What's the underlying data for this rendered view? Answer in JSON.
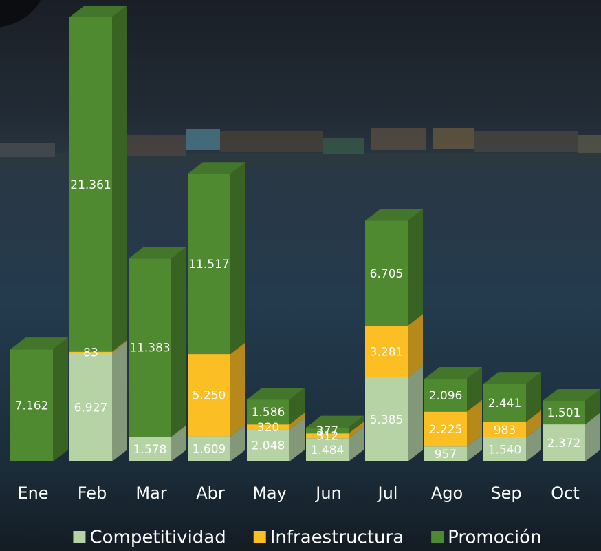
{
  "chart_data": {
    "type": "bar3d_stacked",
    "categories": [
      "Ene",
      "Feb",
      "Mar",
      "Abr",
      "May",
      "Jun",
      "Jul",
      "Ago",
      "Sep",
      "Oct"
    ],
    "series": [
      {
        "name": "Competitividad",
        "color": "#b6d3a6",
        "values": [
          null,
          6927,
          1578,
          1609,
          2048,
          1484,
          5385,
          957,
          1540,
          2372
        ],
        "value_labels": [
          null,
          "6.927",
          "1.578",
          "1.609",
          "2.048",
          "1.484",
          "5.385",
          "957",
          "1.540",
          "2.372"
        ]
      },
      {
        "name": "Infraestructura",
        "color": "#fbbf24",
        "values": [
          null,
          83,
          null,
          5250,
          320,
          312,
          3281,
          2225,
          983,
          null
        ],
        "value_labels": [
          null,
          "83",
          null,
          "5.250",
          "320",
          "312",
          "3.281",
          "2.225",
          "983",
          null
        ]
      },
      {
        "name": "Promoción",
        "color": "#4f8a31",
        "values": [
          7162,
          21361,
          11383,
          11517,
          1586,
          377,
          6705,
          2096,
          2441,
          1501
        ],
        "value_labels": [
          "7.162",
          "21.361",
          "11.383",
          "11.517",
          "1.586",
          "377",
          "6.705",
          "2.096",
          "2.441",
          "1.501"
        ]
      }
    ]
  }
}
